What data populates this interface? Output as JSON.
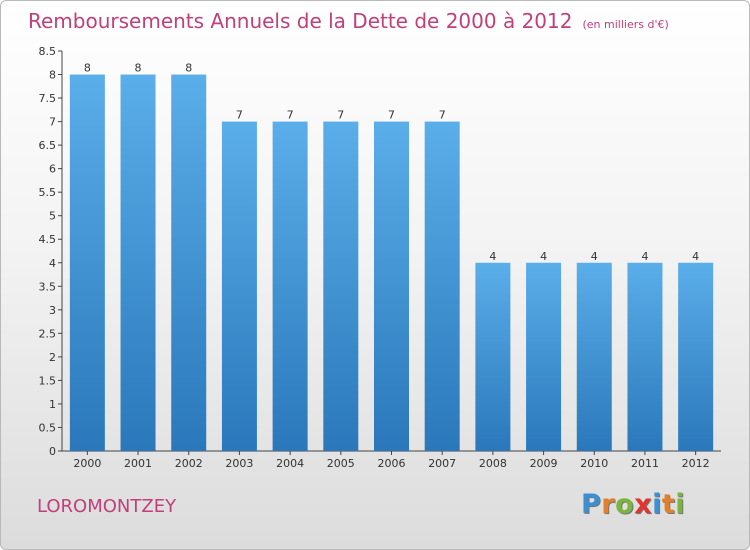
{
  "header": {
    "title": "Remboursements Annuels de la Dette de 2000 à 2012",
    "unit": "(en milliers d'€)"
  },
  "footer": {
    "commune": "LOROMONTZEY",
    "logo_text": "Proxiti"
  },
  "colors": {
    "title": "#c0407a",
    "bar_top": "#5aaee9",
    "bar_bottom": "#2a78bb",
    "logo_letters": [
      "#3c8fd0",
      "#e2802a",
      "#7ab53c",
      "#e2332d",
      "#3c8fd0",
      "#e2802a",
      "#7ab53c"
    ]
  },
  "chart_data": {
    "type": "bar",
    "categories": [
      "2000",
      "2001",
      "2002",
      "2003",
      "2004",
      "2005",
      "2006",
      "2007",
      "2008",
      "2009",
      "2010",
      "2011",
      "2012"
    ],
    "values": [
      8,
      8,
      8,
      7,
      7,
      7,
      7,
      7,
      4,
      4,
      4,
      4,
      4
    ],
    "data_labels": [
      "8",
      "8",
      "8",
      "7",
      "7",
      "7",
      "7",
      "7",
      "4",
      "4",
      "4",
      "4",
      "4"
    ],
    "title": "Remboursements Annuels de la Dette de 2000 à 2012",
    "xlabel": "",
    "ylabel": "",
    "ylim": [
      0,
      8.5
    ],
    "yticks": [
      "0",
      "0.5",
      "1",
      "1.5",
      "2",
      "2.5",
      "3",
      "3.5",
      "4",
      "4.5",
      "5",
      "5.5",
      "6",
      "6.5",
      "7",
      "7.5",
      "8",
      "8.5"
    ],
    "grid": false,
    "legend": "none"
  }
}
